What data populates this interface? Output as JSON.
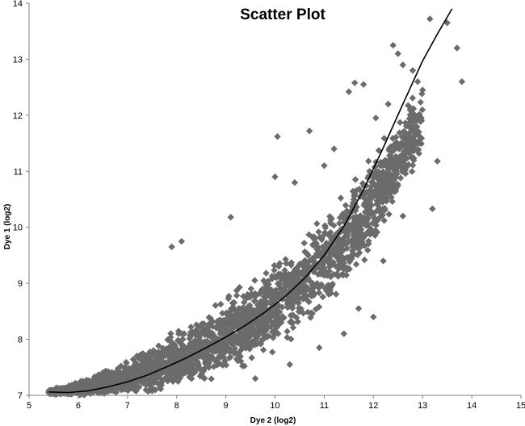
{
  "chart_data": {
    "type": "scatter",
    "title": "Scatter Plot",
    "xlabel": "Dye 2 (log2)",
    "ylabel": "Dye 1 (log2)",
    "xlim": [
      5,
      15
    ],
    "ylim": [
      7,
      14
    ],
    "xticks": [
      5,
      6,
      7,
      8,
      9,
      10,
      11,
      12,
      13,
      14,
      15
    ],
    "yticks": [
      7,
      8,
      9,
      10,
      11,
      12,
      13,
      14
    ],
    "grid": false,
    "legend": "none",
    "marker_color": "#6b6b6b",
    "trend_color": "#000000",
    "trendline": {
      "type": "polynomial",
      "x": [
        5.4,
        5.8,
        6.2,
        6.6,
        7.0,
        7.4,
        7.8,
        8.2,
        8.6,
        9.0,
        9.4,
        9.8,
        10.2,
        10.6,
        11.0,
        11.4,
        11.8,
        12.2,
        12.6,
        13.0,
        13.3,
        13.6
      ],
      "y": [
        7.06,
        7.05,
        7.08,
        7.15,
        7.24,
        7.36,
        7.51,
        7.67,
        7.85,
        8.04,
        8.25,
        8.49,
        8.76,
        9.09,
        9.5,
        10.02,
        10.67,
        11.42,
        12.2,
        12.97,
        13.45,
        13.9
      ]
    },
    "scatter_hints": {
      "band_x": [
        5.4,
        6.0,
        6.5,
        7.0,
        7.5,
        8.0,
        8.5,
        9.0,
        9.5,
        10.0,
        10.5,
        11.0,
        11.5,
        12.0,
        12.5,
        13.0
      ],
      "band_center_y": [
        7.06,
        7.1,
        7.2,
        7.3,
        7.45,
        7.62,
        7.8,
        8.05,
        8.32,
        8.6,
        8.95,
        9.4,
        9.9,
        10.5,
        11.2,
        11.9
      ],
      "band_half_width": [
        0.04,
        0.15,
        0.25,
        0.35,
        0.45,
        0.55,
        0.62,
        0.7,
        0.75,
        0.8,
        0.85,
        0.9,
        0.9,
        0.85,
        0.8,
        0.7
      ],
      "outliers": [
        [
          13.15,
          13.72
        ],
        [
          13.5,
          13.65
        ],
        [
          13.7,
          13.2
        ],
        [
          13.8,
          12.6
        ],
        [
          12.4,
          13.25
        ],
        [
          12.5,
          13.1
        ],
        [
          12.6,
          12.9
        ],
        [
          12.8,
          12.8
        ],
        [
          12.9,
          12.6
        ],
        [
          13.0,
          12.45
        ],
        [
          13.3,
          11.18
        ],
        [
          13.2,
          10.33
        ],
        [
          11.62,
          12.58
        ],
        [
          11.8,
          12.55
        ],
        [
          11.5,
          12.42
        ],
        [
          10.05,
          11.62
        ],
        [
          10.7,
          11.72
        ],
        [
          8.1,
          9.75
        ],
        [
          7.9,
          9.65
        ],
        [
          9.1,
          10.18
        ],
        [
          12.05,
          11.95
        ],
        [
          12.3,
          12.2
        ],
        [
          11.0,
          11.1
        ],
        [
          11.2,
          11.4
        ],
        [
          10.4,
          10.8
        ],
        [
          10.0,
          10.9
        ],
        [
          12.6,
          10.2
        ],
        [
          12.2,
          9.4
        ],
        [
          11.9,
          9.9
        ],
        [
          11.7,
          8.55
        ],
        [
          12.0,
          8.4
        ],
        [
          11.4,
          8.1
        ],
        [
          10.9,
          7.85
        ],
        [
          10.3,
          7.55
        ],
        [
          9.6,
          7.3
        ]
      ]
    }
  }
}
